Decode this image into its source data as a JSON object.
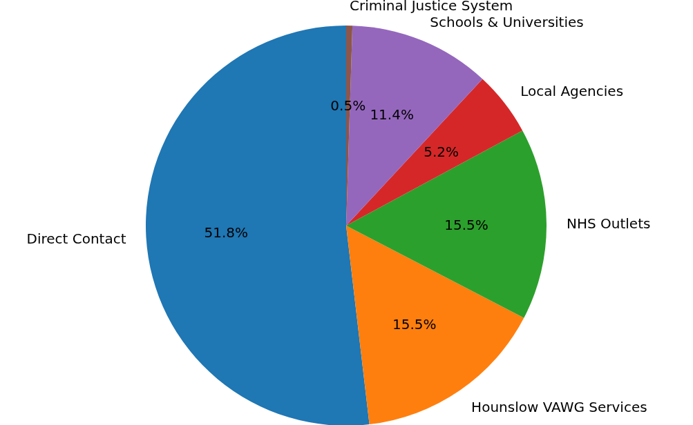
{
  "chart_data": {
    "type": "pie",
    "categories": [
      "Direct Contact",
      "Hounslow VAWG Services",
      "NHS Outlets",
      "Local Agencies",
      "Schools & Universities",
      "Criminal Justice System"
    ],
    "values": [
      51.8,
      15.5,
      15.5,
      5.2,
      11.4,
      0.5
    ],
    "colors": [
      "#1f77b4",
      "#ff7f0e",
      "#2ca02c",
      "#d62728",
      "#9467bd",
      "#8c564b"
    ],
    "value_labels": [
      "51.8%",
      "15.5%",
      "15.5%",
      "5.2%",
      "11.4%",
      "0.5%"
    ]
  }
}
